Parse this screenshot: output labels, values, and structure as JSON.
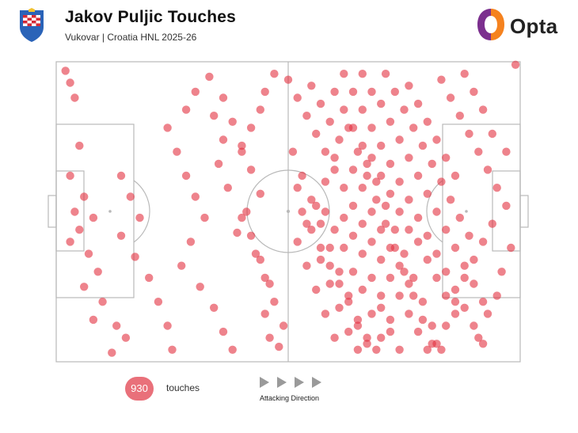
{
  "header": {
    "title": "Jakov Puljic Touches",
    "subtitle": "Vukovar | Croatia HNL 2025-26",
    "brand_name": "Opta",
    "crest_icon": "club-crest-icon",
    "brand_icon": "opta-logo-icon"
  },
  "colors": {
    "touch": "#e2303f",
    "pitch_line": "#b9b9b9",
    "badge": "#e9707a",
    "arrow": "#9a9a9a",
    "brand_orange": "#f5821f",
    "brand_purple": "#7b2f8e"
  },
  "footer": {
    "touch_count": "930",
    "touch_label": "touches",
    "direction_label": "Attacking Direction",
    "direction_icon": "play-arrow-icon"
  },
  "chart_data": {
    "type": "scatter",
    "title": "Jakov Puljic Touches",
    "subtitle": "Vukovar | Croatia HNL 2025-26",
    "xlabel": "",
    "ylabel": "",
    "xlim": [
      0,
      100
    ],
    "ylim": [
      0,
      100
    ],
    "grid": false,
    "total": 930,
    "note_visible": "Attacking Direction",
    "points": [
      [
        2,
        97
      ],
      [
        3,
        93
      ],
      [
        4,
        88
      ],
      [
        5,
        72
      ],
      [
        3,
        62
      ],
      [
        6,
        55
      ],
      [
        4,
        50
      ],
      [
        8,
        48
      ],
      [
        5,
        44
      ],
      [
        3,
        40
      ],
      [
        7,
        36
      ],
      [
        9,
        30
      ],
      [
        6,
        25
      ],
      [
        10,
        20
      ],
      [
        8,
        14
      ],
      [
        13,
        12
      ],
      [
        15,
        8
      ],
      [
        12,
        3
      ],
      [
        14,
        62
      ],
      [
        16,
        55
      ],
      [
        18,
        48
      ],
      [
        14,
        42
      ],
      [
        17,
        35
      ],
      [
        20,
        28
      ],
      [
        22,
        20
      ],
      [
        24,
        12
      ],
      [
        25,
        4
      ],
      [
        26,
        70
      ],
      [
        28,
        62
      ],
      [
        30,
        55
      ],
      [
        32,
        48
      ],
      [
        29,
        40
      ],
      [
        27,
        32
      ],
      [
        31,
        25
      ],
      [
        34,
        18
      ],
      [
        36,
        10
      ],
      [
        38,
        4
      ],
      [
        24,
        78
      ],
      [
        28,
        84
      ],
      [
        30,
        90
      ],
      [
        33,
        95
      ],
      [
        36,
        88
      ],
      [
        38,
        80
      ],
      [
        40,
        72
      ],
      [
        42,
        64
      ],
      [
        44,
        56
      ],
      [
        41,
        50
      ],
      [
        39,
        43
      ],
      [
        43,
        36
      ],
      [
        45,
        28
      ],
      [
        47,
        20
      ],
      [
        49,
        12
      ],
      [
        48,
        5
      ],
      [
        35,
        66
      ],
      [
        37,
        58
      ],
      [
        40,
        48
      ],
      [
        42,
        42
      ],
      [
        44,
        34
      ],
      [
        46,
        26
      ],
      [
        45,
        16
      ],
      [
        46,
        8
      ],
      [
        47,
        96
      ],
      [
        45,
        90
      ],
      [
        44,
        84
      ],
      [
        42,
        78
      ],
      [
        40,
        70
      ],
      [
        36,
        74
      ],
      [
        34,
        82
      ],
      [
        50,
        94
      ],
      [
        52,
        88
      ],
      [
        54,
        82
      ],
      [
        56,
        76
      ],
      [
        58,
        70
      ],
      [
        60,
        64
      ],
      [
        62,
        58
      ],
      [
        64,
        52
      ],
      [
        66,
        46
      ],
      [
        68,
        40
      ],
      [
        70,
        34
      ],
      [
        72,
        28
      ],
      [
        74,
        22
      ],
      [
        76,
        16
      ],
      [
        78,
        10
      ],
      [
        80,
        4
      ],
      [
        51,
        70
      ],
      [
        53,
        62
      ],
      [
        55,
        54
      ],
      [
        57,
        46
      ],
      [
        59,
        38
      ],
      [
        61,
        30
      ],
      [
        63,
        22
      ],
      [
        65,
        14
      ],
      [
        67,
        6
      ],
      [
        52,
        40
      ],
      [
        54,
        32
      ],
      [
        56,
        24
      ],
      [
        58,
        16
      ],
      [
        60,
        8
      ],
      [
        62,
        96
      ],
      [
        64,
        90
      ],
      [
        66,
        84
      ],
      [
        68,
        78
      ],
      [
        70,
        72
      ],
      [
        72,
        66
      ],
      [
        74,
        60
      ],
      [
        76,
        54
      ],
      [
        78,
        48
      ],
      [
        80,
        42
      ],
      [
        82,
        36
      ],
      [
        84,
        30
      ],
      [
        86,
        24
      ],
      [
        88,
        18
      ],
      [
        90,
        12
      ],
      [
        92,
        6
      ],
      [
        63,
        78
      ],
      [
        65,
        70
      ],
      [
        67,
        62
      ],
      [
        69,
        54
      ],
      [
        71,
        46
      ],
      [
        73,
        38
      ],
      [
        75,
        30
      ],
      [
        77,
        22
      ],
      [
        79,
        14
      ],
      [
        81,
        6
      ],
      [
        83,
        94
      ],
      [
        85,
        88
      ],
      [
        87,
        82
      ],
      [
        89,
        76
      ],
      [
        91,
        70
      ],
      [
        93,
        64
      ],
      [
        95,
        58
      ],
      [
        97,
        52
      ],
      [
        94,
        46
      ],
      [
        92,
        40
      ],
      [
        90,
        34
      ],
      [
        88,
        28
      ],
      [
        86,
        20
      ],
      [
        84,
        12
      ],
      [
        82,
        6
      ],
      [
        96,
        30
      ],
      [
        98,
        38
      ],
      [
        95,
        22
      ],
      [
        93,
        16
      ],
      [
        91,
        8
      ],
      [
        97,
        70
      ],
      [
        94,
        76
      ],
      [
        92,
        84
      ],
      [
        90,
        90
      ],
      [
        88,
        96
      ],
      [
        99,
        99
      ],
      [
        55,
        92
      ],
      [
        57,
        86
      ],
      [
        59,
        80
      ],
      [
        61,
        74
      ],
      [
        60,
        68
      ],
      [
        58,
        60
      ],
      [
        56,
        52
      ],
      [
        54,
        46
      ],
      [
        52,
        58
      ],
      [
        57,
        34
      ],
      [
        59,
        26
      ],
      [
        61,
        18
      ],
      [
        63,
        10
      ],
      [
        65,
        4
      ],
      [
        66,
        96
      ],
      [
        68,
        90
      ],
      [
        70,
        86
      ],
      [
        72,
        80
      ],
      [
        74,
        74
      ],
      [
        76,
        68
      ],
      [
        78,
        62
      ],
      [
        80,
        56
      ],
      [
        82,
        50
      ],
      [
        84,
        44
      ],
      [
        86,
        38
      ],
      [
        88,
        32
      ],
      [
        90,
        26
      ],
      [
        92,
        20
      ],
      [
        67,
        66
      ],
      [
        69,
        60
      ],
      [
        71,
        52
      ],
      [
        73,
        44
      ],
      [
        75,
        36
      ],
      [
        77,
        28
      ],
      [
        79,
        20
      ],
      [
        81,
        12
      ],
      [
        83,
        4
      ],
      [
        70,
        18
      ],
      [
        72,
        10
      ],
      [
        74,
        4
      ],
      [
        76,
        92
      ],
      [
        78,
        86
      ],
      [
        80,
        80
      ],
      [
        82,
        74
      ],
      [
        84,
        68
      ],
      [
        86,
        62
      ],
      [
        62,
        48
      ],
      [
        64,
        42
      ],
      [
        66,
        36
      ],
      [
        68,
        28
      ],
      [
        70,
        22
      ],
      [
        72,
        14
      ],
      [
        64,
        64
      ],
      [
        66,
        58
      ],
      [
        68,
        50
      ],
      [
        70,
        44
      ],
      [
        72,
        38
      ],
      [
        74,
        32
      ],
      [
        76,
        26
      ],
      [
        78,
        40
      ],
      [
        80,
        34
      ],
      [
        82,
        28
      ],
      [
        84,
        22
      ],
      [
        86,
        16
      ],
      [
        58,
        50
      ],
      [
        60,
        44
      ],
      [
        62,
        38
      ],
      [
        64,
        30
      ],
      [
        66,
        24
      ],
      [
        68,
        16
      ],
      [
        70,
        8
      ],
      [
        60,
        90
      ],
      [
        62,
        84
      ],
      [
        64,
        78
      ],
      [
        66,
        72
      ],
      [
        68,
        68
      ],
      [
        70,
        62
      ],
      [
        72,
        56
      ],
      [
        74,
        50
      ],
      [
        76,
        44
      ],
      [
        53,
        50
      ],
      [
        55,
        44
      ],
      [
        57,
        38
      ],
      [
        59,
        32
      ],
      [
        61,
        26
      ],
      [
        63,
        20
      ],
      [
        65,
        12
      ],
      [
        67,
        8
      ],
      [
        69,
        4
      ],
      [
        71,
        96
      ],
      [
        73,
        90
      ],
      [
        75,
        84
      ],
      [
        77,
        78
      ],
      [
        79,
        72
      ],
      [
        81,
        66
      ],
      [
        83,
        60
      ],
      [
        85,
        54
      ],
      [
        87,
        48
      ],
      [
        89,
        42
      ]
    ]
  }
}
